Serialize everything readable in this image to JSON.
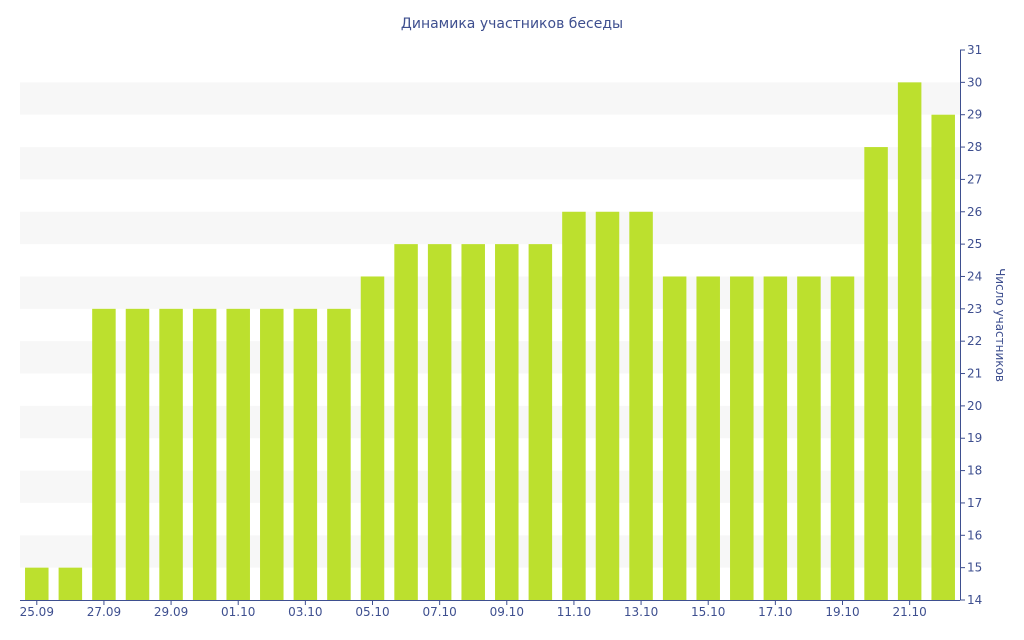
{
  "chart_data": {
    "type": "bar",
    "title": "Динамика участников беседы",
    "ylabel": "Число участников",
    "xlabel": "",
    "categories": [
      "25.09",
      "26.09",
      "27.09",
      "28.09",
      "29.09",
      "30.09",
      "01.10",
      "02.10",
      "03.10",
      "04.10",
      "05.10",
      "06.10",
      "07.10",
      "08.10",
      "09.10",
      "10.10",
      "11.10",
      "12.10",
      "13.10",
      "14.10",
      "15.10",
      "16.10",
      "17.10",
      "18.10",
      "19.10",
      "20.10",
      "21.10",
      "22.10"
    ],
    "x_tick_labels": [
      "25.09",
      "",
      "27.09",
      "",
      "29.09",
      "",
      "01.10",
      "",
      "03.10",
      "",
      "05.10",
      "",
      "07.10",
      "",
      "09.10",
      "",
      "11.10",
      "",
      "13.10",
      "",
      "15.10",
      "",
      "17.10",
      "",
      "19.10",
      "",
      "21.10",
      ""
    ],
    "values": [
      15,
      15,
      23,
      23,
      23,
      23,
      23,
      23,
      23,
      23,
      24,
      25,
      25,
      25,
      25,
      25,
      26,
      26,
      26,
      24,
      24,
      24,
      24,
      24,
      24,
      28,
      30,
      29
    ],
    "ylim": [
      14,
      31
    ],
    "y_ticks": [
      "14",
      "15",
      "16",
      "17",
      "18",
      "19",
      "20",
      "21",
      "22",
      "23",
      "24",
      "25",
      "26",
      "27",
      "28",
      "29",
      "30",
      "31"
    ],
    "y_axis_position": "right",
    "grid": "alternating horizontal bands",
    "colors": {
      "bar": "#bce02e",
      "band": "#f7f7f7",
      "text": "#3e4f8f",
      "axis": "#3e4f8f"
    }
  }
}
